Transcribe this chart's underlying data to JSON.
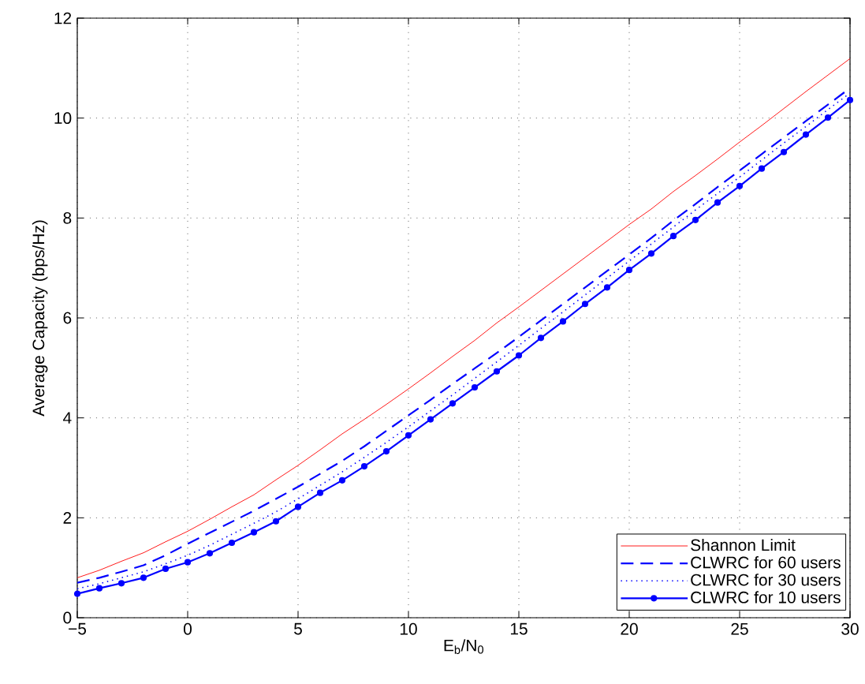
{
  "chart_data": {
    "type": "line",
    "xlabel": "E$_{b}$/N$_{0}$",
    "ylabel": "Average Capacity (bps/Hz)",
    "x": [
      -5,
      -4,
      -3,
      -2,
      -1,
      0,
      1,
      2,
      3,
      4,
      5,
      6,
      7,
      8,
      9,
      10,
      11,
      12,
      13,
      14,
      15,
      16,
      17,
      18,
      19,
      20,
      21,
      22,
      23,
      24,
      25,
      26,
      27,
      28,
      29,
      30
    ],
    "series": [
      {
        "name": "Shannon Limit",
        "color": "#ff0000",
        "line_style": "solid",
        "marker": "none",
        "values": [
          0.8,
          0.95,
          1.13,
          1.3,
          1.52,
          1.73,
          1.97,
          2.22,
          2.46,
          2.76,
          3.05,
          3.36,
          3.68,
          3.97,
          4.27,
          4.58,
          4.9,
          5.23,
          5.55,
          5.9,
          6.22,
          6.55,
          6.88,
          7.21,
          7.54,
          7.87,
          8.18,
          8.53,
          8.85,
          9.18,
          9.52,
          9.85,
          10.19,
          10.53,
          10.86,
          11.19
        ]
      },
      {
        "name": "CLWRC for 60 users",
        "color": "#0000ff",
        "line_style": "dashed",
        "marker": "none",
        "values": [
          0.7,
          0.8,
          0.92,
          1.05,
          1.25,
          1.48,
          1.7,
          1.92,
          2.14,
          2.38,
          2.62,
          2.88,
          3.14,
          3.43,
          3.74,
          4.05,
          4.36,
          4.68,
          4.99,
          5.3,
          5.62,
          5.95,
          6.28,
          6.61,
          6.94,
          7.27,
          7.6,
          7.95,
          8.28,
          8.62,
          8.95,
          9.28,
          9.61,
          9.94,
          10.27,
          10.6
        ]
      },
      {
        "name": "CLWRC for 30 users",
        "color": "#0000ff",
        "line_style": "dotted",
        "marker": "none",
        "values": [
          0.58,
          0.68,
          0.8,
          0.92,
          1.08,
          1.25,
          1.45,
          1.67,
          1.89,
          2.12,
          2.38,
          2.65,
          2.92,
          3.21,
          3.51,
          3.82,
          4.14,
          4.46,
          4.79,
          5.12,
          5.45,
          5.79,
          6.12,
          6.46,
          6.8,
          7.14,
          7.48,
          7.82,
          8.16,
          8.49,
          8.82,
          9.16,
          9.5,
          9.83,
          10.17,
          10.5
        ]
      },
      {
        "name": "CLWRC for 10 users",
        "color": "#0000ff",
        "line_style": "solid",
        "marker": "circle",
        "values": [
          0.48,
          0.59,
          0.69,
          0.8,
          0.98,
          1.11,
          1.29,
          1.5,
          1.71,
          1.93,
          2.22,
          2.5,
          2.75,
          3.03,
          3.33,
          3.65,
          3.97,
          4.29,
          4.61,
          4.93,
          5.25,
          5.6,
          5.93,
          6.28,
          6.61,
          6.96,
          7.29,
          7.64,
          7.96,
          8.31,
          8.64,
          8.99,
          9.32,
          9.67,
          10.01,
          10.36
        ]
      }
    ],
    "xlim": [
      -5,
      30
    ],
    "ylim": [
      0,
      12
    ],
    "xticks": [
      {
        "value": -5,
        "label": "−5"
      },
      0,
      5,
      10,
      15,
      20,
      25,
      30
    ],
    "yticks": [
      0,
      2,
      4,
      6,
      8,
      10,
      12
    ],
    "grid": true,
    "legend": "bottom right"
  }
}
